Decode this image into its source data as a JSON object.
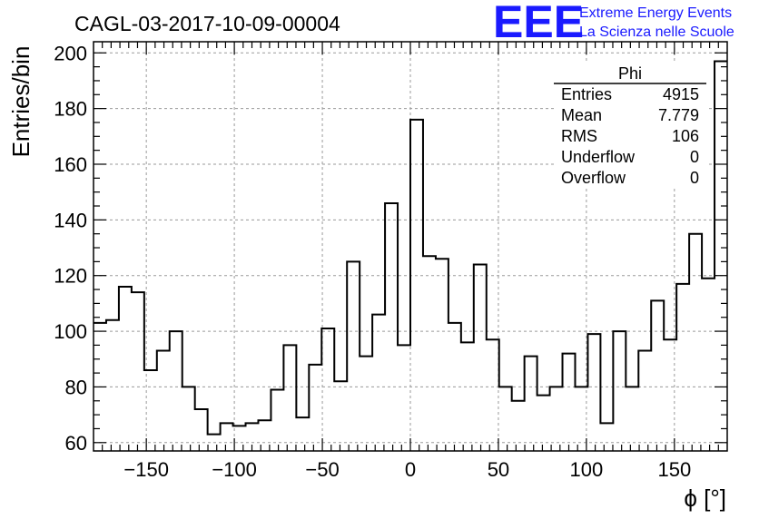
{
  "chart_data": {
    "type": "bar",
    "style": "step-histogram",
    "title": "CAGL-03-2017-10-09-00004",
    "xlabel": "ϕ [°]",
    "ylabel": "Entries/bin",
    "xlim": [
      -180,
      180
    ],
    "ylim": [
      57,
      204
    ],
    "bin_width": 7.2,
    "bin_edges_start": -180,
    "x_ticks": [
      -150,
      -100,
      -50,
      0,
      50,
      100,
      150
    ],
    "x_tick_labels": [
      "−150",
      "−100",
      "−50",
      "0",
      "50",
      "100",
      "150"
    ],
    "y_ticks": [
      60,
      80,
      100,
      120,
      140,
      160,
      180,
      200
    ],
    "y_tick_labels": [
      "60",
      "80",
      "100",
      "120",
      "140",
      "160",
      "180",
      "200"
    ],
    "grid": true,
    "values": [
      103,
      104,
      116,
      114,
      86,
      93,
      100,
      80,
      72,
      63,
      67,
      66,
      67,
      68,
      79,
      95,
      69,
      88,
      101,
      82,
      125,
      91,
      106,
      146,
      95,
      176,
      127,
      126,
      103,
      96,
      124,
      97,
      80,
      75,
      91,
      77,
      80,
      92,
      80,
      99,
      67,
      100,
      80,
      93,
      111,
      97,
      117,
      135,
      119,
      197
    ],
    "stats_box": {
      "title": "Phi",
      "rows": [
        {
          "label": "Entries",
          "value": "4915"
        },
        {
          "label": "Mean",
          "value": "7.779"
        },
        {
          "label": "RMS",
          "value": "106"
        },
        {
          "label": "Underflow",
          "value": "0"
        },
        {
          "label": "Overflow",
          "value": "0"
        }
      ]
    }
  },
  "logo": {
    "mark": "EEE",
    "line1": "Extreme Energy Events",
    "line2": "La Scienza nelle Scuole"
  },
  "colors": {
    "histogram": "#000000",
    "grid": "#9a9a9a",
    "logo": "#1a1aff"
  }
}
